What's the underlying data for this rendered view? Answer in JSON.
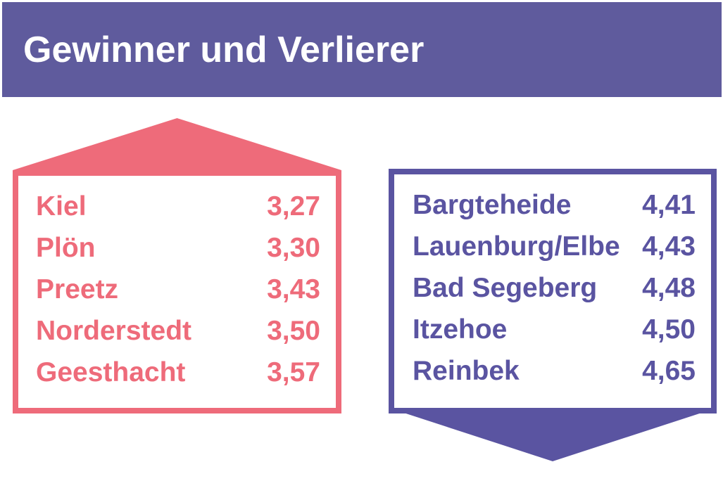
{
  "header": {
    "title": "Gewinner und Verlierer",
    "bg_color": "#5f5b9d",
    "text_color": "#ffffff"
  },
  "winners": {
    "accent_color": "#ee6b7a",
    "direction": "up",
    "items": [
      {
        "name": "Kiel",
        "value": "3,27"
      },
      {
        "name": "Plön",
        "value": "3,30"
      },
      {
        "name": "Preetz",
        "value": "3,43"
      },
      {
        "name": "Norderstedt",
        "value": "3,50"
      },
      {
        "name": "Geesthacht",
        "value": "3,57"
      }
    ]
  },
  "losers": {
    "accent_color": "#5a54a1",
    "direction": "down",
    "items": [
      {
        "name": "Bargteheide",
        "value": "4,41"
      },
      {
        "name": "Lauenburg/Elbe",
        "value": "4,43"
      },
      {
        "name": "Bad Segeberg",
        "value": "4,48"
      },
      {
        "name": "Itzehoe",
        "value": "4,50"
      },
      {
        "name": "Reinbek",
        "value": "4,65"
      }
    ]
  },
  "chart_data": {
    "type": "table",
    "title": "Gewinner und Verlierer",
    "groups": [
      {
        "label": "Gewinner",
        "direction": "up",
        "color": "#ee6b7a",
        "categories": [
          "Kiel",
          "Plön",
          "Preetz",
          "Norderstedt",
          "Geesthacht"
        ],
        "values": [
          3.27,
          3.3,
          3.43,
          3.5,
          3.57
        ]
      },
      {
        "label": "Verlierer",
        "direction": "down",
        "color": "#5a54a1",
        "categories": [
          "Bargteheide",
          "Lauenburg/Elbe",
          "Bad Segeberg",
          "Itzehoe",
          "Reinbek"
        ],
        "values": [
          4.41,
          4.43,
          4.48,
          4.5,
          4.65
        ]
      }
    ]
  }
}
